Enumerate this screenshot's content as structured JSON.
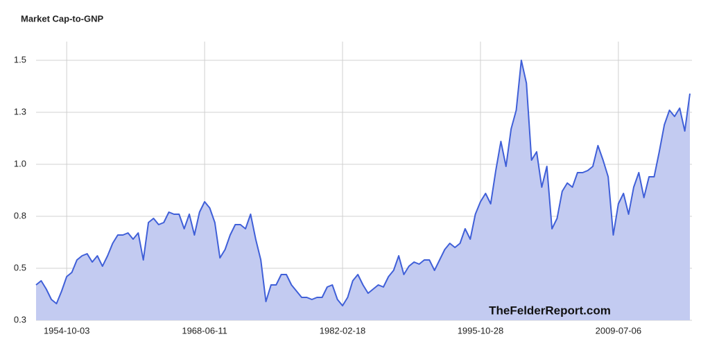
{
  "chart_data": {
    "type": "area",
    "title": "Market Cap-to-GNP",
    "watermark": "TheFelderReport.com",
    "color": "#3f5fd8",
    "fill": "#c3cbf1",
    "grid": true,
    "ylim": [
      0.25,
      1.59
    ],
    "yticks": [
      {
        "value": 0.25,
        "label": "0.3"
      },
      0.5,
      {
        "value": 0.75,
        "label": "0.8"
      },
      {
        "value": 1,
        "label": "1.0"
      },
      {
        "value": 1.25,
        "label": "1.3"
      },
      1.5
    ],
    "categories": [
      null,
      null,
      null,
      null,
      null,
      null,
      "1954-10-03",
      null,
      null,
      null,
      null,
      null,
      null,
      null,
      null,
      null,
      null,
      null,
      null,
      null,
      null,
      null,
      null,
      null,
      null,
      null,
      null,
      null,
      null,
      null,
      null,
      null,
      null,
      "1968-06-11",
      null,
      null,
      null,
      null,
      null,
      null,
      null,
      null,
      null,
      null,
      null,
      null,
      null,
      null,
      null,
      null,
      null,
      null,
      null,
      null,
      null,
      null,
      null,
      null,
      null,
      null,
      "1982-02-18",
      null,
      null,
      null,
      null,
      null,
      null,
      null,
      null,
      null,
      null,
      null,
      null,
      null,
      null,
      null,
      null,
      null,
      null,
      null,
      null,
      null,
      null,
      null,
      null,
      null,
      null,
      "1995-10-28",
      null,
      null,
      null,
      null,
      null,
      null,
      null,
      null,
      null,
      null,
      null,
      null,
      null,
      null,
      null,
      null,
      null,
      null,
      null,
      null,
      null,
      null,
      null,
      null,
      null,
      null,
      "2009-07-06",
      null,
      null,
      null,
      null,
      null,
      null,
      null,
      null,
      null,
      null,
      null,
      null,
      null,
      null
    ],
    "values": [
      0.42,
      0.44,
      0.4,
      0.35,
      0.33,
      0.39,
      0.46,
      0.48,
      0.54,
      0.56,
      0.57,
      0.53,
      0.56,
      0.51,
      0.56,
      0.62,
      0.66,
      0.66,
      0.67,
      0.64,
      0.67,
      0.54,
      0.72,
      0.74,
      0.71,
      0.72,
      0.77,
      0.76,
      0.76,
      0.69,
      0.76,
      0.66,
      0.77,
      0.82,
      0.79,
      0.72,
      0.55,
      0.59,
      0.66,
      0.71,
      0.71,
      0.69,
      0.76,
      0.64,
      0.54,
      0.34,
      0.42,
      0.42,
      0.47,
      0.47,
      0.42,
      0.39,
      0.36,
      0.36,
      0.35,
      0.36,
      0.36,
      0.41,
      0.42,
      0.35,
      0.32,
      0.36,
      0.44,
      0.47,
      0.42,
      0.38,
      0.4,
      0.42,
      0.41,
      0.46,
      0.49,
      0.56,
      0.47,
      0.51,
      0.53,
      0.52,
      0.54,
      0.54,
      0.49,
      0.54,
      0.59,
      0.62,
      0.6,
      0.62,
      0.69,
      0.64,
      0.76,
      0.82,
      0.86,
      0.81,
      0.97,
      1.11,
      0.99,
      1.17,
      1.26,
      1.5,
      1.39,
      1.02,
      1.06,
      0.89,
      0.99,
      0.69,
      0.74,
      0.87,
      0.91,
      0.89,
      0.96,
      0.96,
      0.97,
      0.99,
      1.09,
      1.02,
      0.94,
      0.66,
      0.81,
      0.86,
      0.76,
      0.89,
      0.96,
      0.84,
      0.94,
      0.94,
      1.06,
      1.19,
      1.26,
      1.23,
      1.27,
      1.16,
      1.34
    ]
  }
}
